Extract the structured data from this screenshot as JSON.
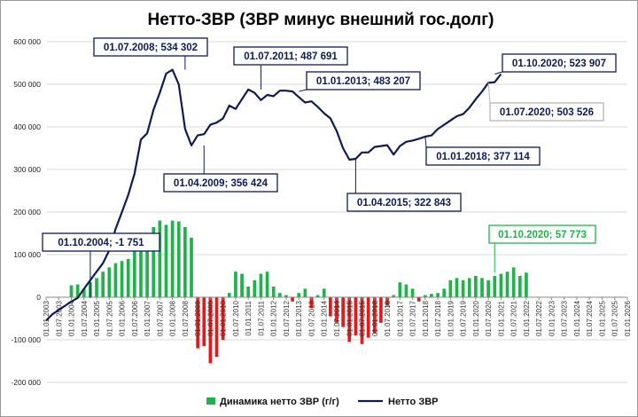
{
  "chart_data": {
    "type": "bar+line",
    "title": "Нетто-ЗВР (ЗВР минус внешний гос.долг)",
    "ylim": [
      -200000,
      600000
    ],
    "yticks": [
      -200000,
      -100000,
      0,
      100000,
      200000,
      300000,
      400000,
      500000,
      600000
    ],
    "ytick_labels": [
      "-200 000",
      "-100 000",
      "0",
      "100 000",
      "200 000",
      "300 000",
      "400 000",
      "500 000",
      "600 000"
    ],
    "grid": "horizontal",
    "legend_position": "bottom",
    "x_tick_labels": [
      "01.01.2003",
      "01.07.2003",
      "01.01.2004",
      "01.07.2004",
      "01.01.2005",
      "01.07.2005",
      "01.01.2006",
      "01.07.2006",
      "01.01.2007",
      "01.07.2007",
      "01.01.2008",
      "01.07.2008",
      "01.01.2009",
      "01.07.2009",
      "01.01.2010",
      "01.07.2010",
      "01.01.2011",
      "01.07.2011",
      "01.01.2012",
      "01.07.2012",
      "01.01.2013",
      "01.07.2013",
      "01.01.2014",
      "01.07.2014",
      "01.01.2015",
      "01.07.2015",
      "01.01.2016",
      "01.07.2016",
      "01.01.2017",
      "01.07.2017",
      "01.01.2018",
      "01.07.2018",
      "01.01.2019",
      "01.07.2019",
      "01.01.2020",
      "01.07.2020",
      "01.01.2021",
      "01.07.2021",
      "01.01.2022",
      "01.07.2022",
      "01.01.2023",
      "01.07.2023",
      "01.01.2024",
      "01.07.2024",
      "01.01.2025",
      "01.07.2025",
      "01.01.2026"
    ],
    "series": [
      {
        "name": "Динамика нетто ЗВР (г/г)",
        "kind": "bar",
        "color": "#1fb44a",
        "negative_color": "#e41a1a",
        "values": [
          null,
          null,
          null,
          null,
          28000,
          30000,
          20000,
          35000,
          45000,
          60000,
          70000,
          80000,
          85000,
          90000,
          110000,
          130000,
          150000,
          165000,
          180000,
          170000,
          180000,
          178000,
          165000,
          140000,
          -120000,
          -115000,
          -155000,
          -140000,
          -100000,
          10000,
          60000,
          55000,
          25000,
          40000,
          55000,
          60000,
          25000,
          10000,
          5000,
          -10000,
          10000,
          20000,
          -25000,
          5000,
          20000,
          -45000,
          -60000,
          -70000,
          -105000,
          -90000,
          -110000,
          -95000,
          -85000,
          -60000,
          -20000,
          5000,
          35000,
          30000,
          20000,
          -10000,
          5000,
          8000,
          10000,
          20000,
          40000,
          45000,
          40000,
          45000,
          50000,
          45000,
          40000,
          50000,
          55000,
          60000,
          70000,
          50000,
          57773
        ]
      },
      {
        "name": "Нетто ЗВР",
        "kind": "line",
        "color": "#0d1b57",
        "values": [
          -55000,
          -40000,
          -30000,
          -20000,
          -10000,
          -1751,
          20000,
          40000,
          60000,
          80000,
          110000,
          160000,
          200000,
          240000,
          290000,
          370000,
          385000,
          440000,
          480000,
          525000,
          534302,
          500000,
          395000,
          356424,
          380000,
          383000,
          405000,
          410000,
          420000,
          450000,
          442000,
          465000,
          487691,
          480000,
          463000,
          475000,
          472000,
          485000,
          485000,
          483207,
          470000,
          457000,
          460000,
          447000,
          432000,
          420000,
          390000,
          350000,
          322843,
          325000,
          340000,
          340000,
          353000,
          355000,
          357000,
          335000,
          355000,
          365000,
          368000,
          372000,
          377114,
          380000,
          395000,
          405000,
          415000,
          425000,
          430000,
          445000,
          465000,
          483000,
          503526,
          505000,
          523907
        ]
      }
    ],
    "annotations": [
      {
        "label": "01.07.2008;  534 302",
        "style": "dark"
      },
      {
        "label": "01.07.2011;  487 691",
        "style": "dark"
      },
      {
        "label": "01.01.2013;  483 207",
        "style": "dark"
      },
      {
        "label": "01.10.2020;  523 907",
        "style": "dark"
      },
      {
        "label": "01.07.2020;  503 526",
        "style": "light"
      },
      {
        "label": "01.01.2018;  377 114",
        "style": "dark"
      },
      {
        "label": "01.04.2009;  356 424",
        "style": "dark"
      },
      {
        "label": "01.04.2015;  322 843",
        "style": "dark"
      },
      {
        "label": "01.10.2004; -1 751",
        "style": "dark"
      },
      {
        "label": "01.10.2020;  57 773",
        "style": "green"
      }
    ]
  }
}
